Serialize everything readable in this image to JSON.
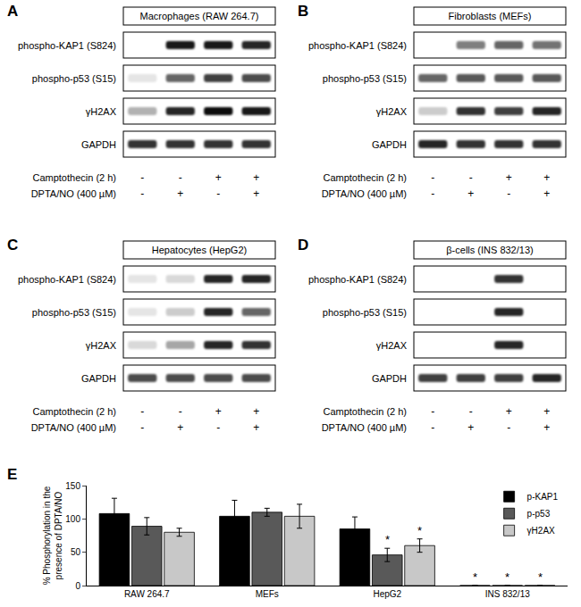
{
  "panels": [
    {
      "panel": "A",
      "title": "Macrophages (RAW 264.7)",
      "rows": [
        {
          "label": "phospho-KAP1 (S824)",
          "band_intensity": [
            0.0,
            0.9,
            0.9,
            0.85
          ]
        },
        {
          "label": "phospho-p53 (S15)",
          "band_intensity": [
            0.1,
            0.6,
            0.75,
            0.7
          ]
        },
        {
          "label": "γH2AX",
          "band_intensity": [
            0.3,
            0.85,
            0.95,
            0.9
          ]
        },
        {
          "label": "GAPDH",
          "band_intensity": [
            0.8,
            0.8,
            0.8,
            0.8
          ]
        }
      ],
      "conditions": [
        {
          "label": "Camptothecin (2 h)",
          "signs": [
            "-",
            "-",
            "+",
            "+"
          ]
        },
        {
          "label": "DPTA/NO (400 µM)",
          "signs": [
            "-",
            "+",
            "-",
            "+"
          ]
        }
      ]
    },
    {
      "panel": "B",
      "title": "Fibroblasts (MEFs)",
      "rows": [
        {
          "label": "phospho-KAP1 (S824)",
          "band_intensity": [
            0.0,
            0.5,
            0.6,
            0.55
          ]
        },
        {
          "label": "phospho-p53 (S15)",
          "band_intensity": [
            0.6,
            0.65,
            0.65,
            0.65
          ]
        },
        {
          "label": "γH2AX",
          "band_intensity": [
            0.2,
            0.8,
            0.75,
            0.85
          ]
        },
        {
          "label": "GAPDH",
          "band_intensity": [
            0.85,
            0.8,
            0.8,
            0.8
          ]
        }
      ],
      "conditions": [
        {
          "label": "Camptothecin (2 h)",
          "signs": [
            "-",
            "-",
            "+",
            "+"
          ]
        },
        {
          "label": "DPTA/NO (400 µM)",
          "signs": [
            "-",
            "+",
            "-",
            "+"
          ]
        }
      ]
    },
    {
      "panel": "C",
      "title": "Hepatocytes (HepG2)",
      "rows": [
        {
          "label": "phospho-KAP1 (S824)",
          "band_intensity": [
            0.1,
            0.15,
            0.85,
            0.85
          ]
        },
        {
          "label": "phospho-p53 (S15)",
          "band_intensity": [
            0.1,
            0.2,
            0.85,
            0.6
          ]
        },
        {
          "label": "γH2AX",
          "band_intensity": [
            0.15,
            0.35,
            0.85,
            0.8
          ]
        },
        {
          "label": "GAPDH",
          "band_intensity": [
            0.7,
            0.7,
            0.7,
            0.7
          ]
        }
      ],
      "conditions": [
        {
          "label": "Camptothecin (2 h)",
          "signs": [
            "-",
            "-",
            "+",
            "+"
          ]
        },
        {
          "label": "DPTA/NO (400 µM)",
          "signs": [
            "-",
            "+",
            "-",
            "+"
          ]
        }
      ]
    },
    {
      "panel": "D",
      "title": "β-cells (INS 832/13)",
      "rows": [
        {
          "label": "phospho-KAP1 (S824)",
          "band_intensity": [
            0.0,
            0.0,
            0.8,
            0.0
          ]
        },
        {
          "label": "phospho-p53 (S15)",
          "band_intensity": [
            0.0,
            0.0,
            0.85,
            0.0
          ]
        },
        {
          "label": "γH2AX",
          "band_intensity": [
            0.0,
            0.0,
            0.85,
            0.0
          ]
        },
        {
          "label": "GAPDH",
          "band_intensity": [
            0.75,
            0.75,
            0.75,
            0.85
          ]
        }
      ],
      "conditions": [
        {
          "label": "Camptothecin (2 h)",
          "signs": [
            "-",
            "-",
            "+",
            "+"
          ]
        },
        {
          "label": "DPTA/NO (400 µM)",
          "signs": [
            "-",
            "+",
            "-",
            "+"
          ]
        }
      ]
    }
  ],
  "chart_data": {
    "panel": "E",
    "type": "bar",
    "categories": [
      "RAW 264.7",
      "MEFs",
      "HepG2",
      "INS 832/13"
    ],
    "ylabel": [
      "% Phosphorylation in the",
      "presence of DPTA/NO"
    ],
    "series": [
      {
        "name": "p-KAP1",
        "color": "#000000",
        "values": [
          108,
          104,
          85,
          0
        ],
        "errors": [
          23,
          24,
          18,
          0
        ],
        "significant": [
          false,
          false,
          false,
          true
        ]
      },
      {
        "name": "p-p53",
        "color": "#595959",
        "values": [
          89,
          110,
          46,
          0
        ],
        "errors": [
          13,
          6,
          10,
          0
        ],
        "significant": [
          false,
          false,
          true,
          true
        ]
      },
      {
        "name": "γH2AX",
        "color": "#c8c8c8",
        "values": [
          80,
          104,
          60,
          0
        ],
        "errors": [
          6,
          18,
          10,
          0
        ],
        "significant": [
          false,
          false,
          true,
          true
        ]
      }
    ],
    "significance_mark": "*",
    "ylim": [
      0,
      150
    ],
    "yticks": [
      0,
      50,
      100,
      150
    ],
    "legend": "top-right",
    "grid": false
  }
}
